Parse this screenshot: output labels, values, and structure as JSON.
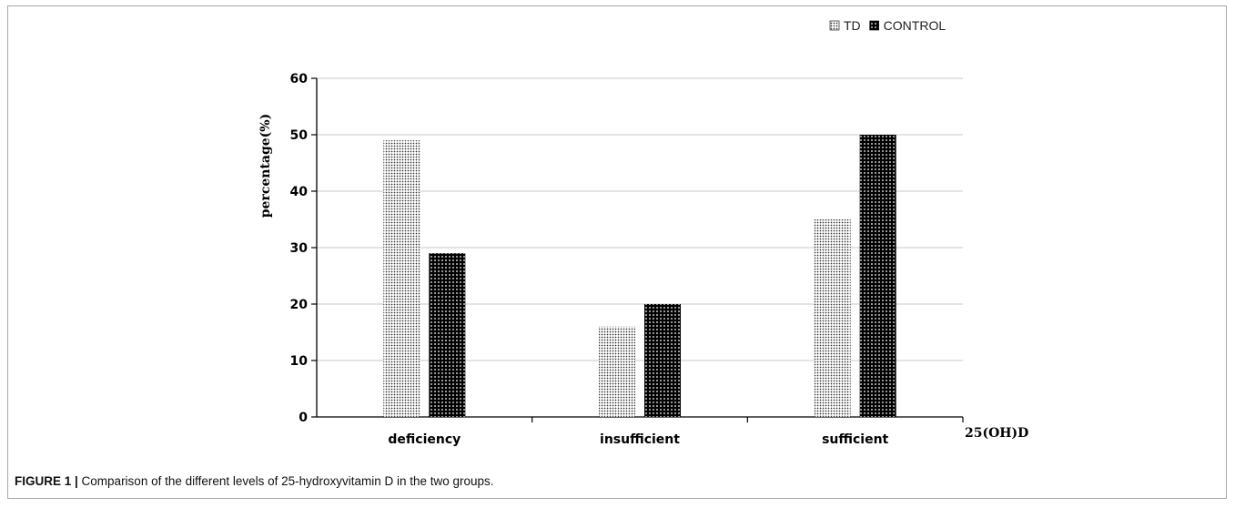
{
  "chart_data": {
    "type": "bar",
    "categories": [
      "deficiency",
      "insufficient",
      "sufficient"
    ],
    "series": [
      {
        "name": "TD",
        "values": [
          49,
          16,
          35
        ],
        "pattern": "fine-dots"
      },
      {
        "name": "CONTROL",
        "values": [
          29,
          20,
          50
        ],
        "pattern": "coarse-dots"
      }
    ],
    "ylabel": "percentage(%)",
    "xlabel": "25(OH)D",
    "ylim": [
      0,
      60
    ],
    "yticks": [
      0,
      10,
      20,
      30,
      40,
      50,
      60
    ],
    "grid": true,
    "legend_position": "top-right"
  },
  "caption": {
    "label": "FIGURE 1 |",
    "text": " Comparison of the different levels of 25-hydroxyvitamin D in the two groups."
  },
  "colors": {
    "grid": "#c8c8c8",
    "axis": "#000000",
    "td_fill": "#333333",
    "control_fill": "#000000",
    "frame": "#a9a9a9"
  }
}
